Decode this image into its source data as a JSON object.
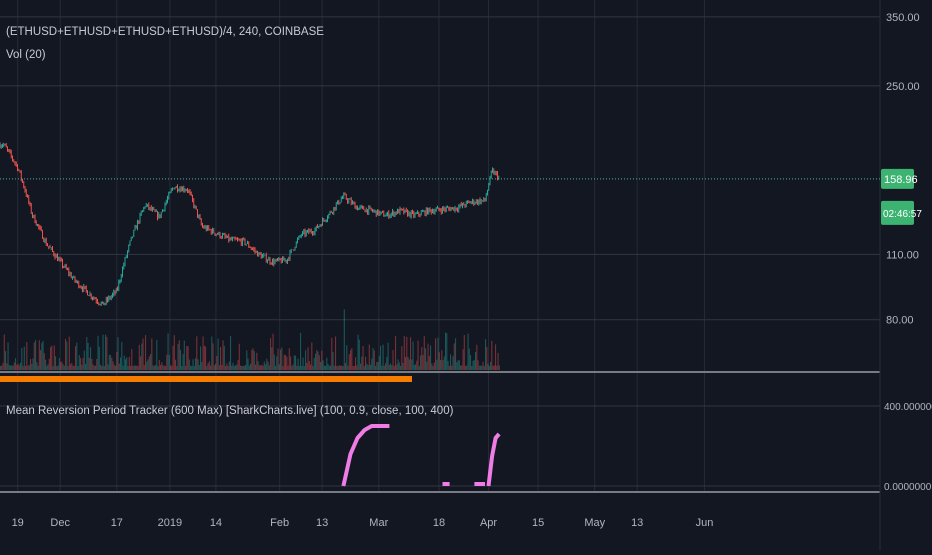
{
  "header": {
    "symbol_line": "(ETHUSD+ETHUSD+ETHUSD+ETHUSD)/4, 240, COINBASE",
    "volume_label": "Vol (20)",
    "indicator_label": "Mean Reversion Period Tracker (600 Max) [SharkCharts.live] (100, 0.9, close, 100, 400)"
  },
  "colors": {
    "background": "#131722",
    "grid": "#363a45",
    "axis_text": "#b2b5be",
    "up_candle": "#26a69a",
    "down_candle": "#ef5350",
    "price_line": "#4db6ac",
    "price_badge": "#3cb371",
    "indicator": "#f07ce6",
    "orange_bar": "#f57c00"
  },
  "price_axis": {
    "ticks": [
      "350.00",
      "250.00",
      "158.96",
      "110.00",
      "80.00"
    ],
    "current_price": "158.96",
    "countdown": "02:46:57"
  },
  "indicator_axis": {
    "ticks": [
      "400.0000000",
      "0.0000000"
    ]
  },
  "time_axis": {
    "ticks": [
      "19",
      "Dec",
      "17",
      "2019",
      "14",
      "Feb",
      "13",
      "Mar",
      "18",
      "Apr",
      "15",
      "May",
      "13",
      "Jun"
    ]
  },
  "chart_data": [
    {
      "type": "line",
      "description_series": "price",
      "scale": "log",
      "ylim": [
        62,
        380
      ],
      "y_ticks": [
        350,
        250,
        110,
        80
      ],
      "current_price": 158.96,
      "x": [
        "2018-11-15",
        "2018-11-19",
        "2018-11-23",
        "2018-11-27",
        "2018-12-01",
        "2018-12-05",
        "2018-12-09",
        "2018-12-13",
        "2018-12-17",
        "2018-12-21",
        "2018-12-25",
        "2018-12-29",
        "2019-01-02",
        "2019-01-06",
        "2019-01-10",
        "2019-01-14",
        "2019-01-18",
        "2019-01-22",
        "2019-01-26",
        "2019-01-30",
        "2019-02-03",
        "2019-02-07",
        "2019-02-11",
        "2019-02-15",
        "2019-02-19",
        "2019-02-23",
        "2019-02-27",
        "2019-03-03",
        "2019-03-07",
        "2019-03-11",
        "2019-03-15",
        "2019-03-19",
        "2019-03-23",
        "2019-03-27",
        "2019-03-31",
        "2019-04-02",
        "2019-04-04"
      ],
      "values": [
        188,
        168,
        134,
        116,
        106,
        97,
        91,
        86,
        92,
        118,
        140,
        132,
        153,
        151,
        126,
        122,
        118,
        117,
        110,
        106,
        107,
        121,
        124,
        134,
        146,
        138,
        136,
        133,
        136,
        133,
        136,
        137,
        138,
        142,
        143,
        165,
        160
      ]
    },
    {
      "type": "bar",
      "description_series": "volume",
      "series_name": "Vol (20)"
    },
    {
      "type": "line",
      "description_series": "indicator",
      "ylim": [
        0,
        520
      ],
      "y_ticks": [
        400,
        0
      ],
      "segments": [
        {
          "x": [
            "2019-02-19",
            "2019-02-21",
            "2019-02-23",
            "2019-02-25",
            "2019-02-27",
            "2019-03-01",
            "2019-03-04"
          ],
          "values": [
            0,
            160,
            240,
            280,
            300,
            300,
            300
          ]
        },
        {
          "x": [
            "2019-03-19",
            "2019-03-21"
          ],
          "values": [
            10,
            10
          ]
        },
        {
          "x": [
            "2019-03-28",
            "2019-03-31"
          ],
          "values": [
            10,
            10
          ]
        },
        {
          "x": [
            "2019-04-01",
            "2019-04-02",
            "2019-04-03",
            "2019-04-04"
          ],
          "values": [
            0,
            150,
            240,
            260
          ]
        }
      ]
    }
  ]
}
